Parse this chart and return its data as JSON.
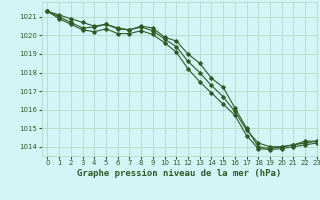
{
  "title": "Graphe pression niveau de la mer (hPa)",
  "bg_color": "#d4f5f5",
  "grid_color": "#b8ddd0",
  "line_color": "#2d5a27",
  "xlim": [
    -0.5,
    23
  ],
  "ylim": [
    1013.5,
    1021.8
  ],
  "xticks": [
    0,
    1,
    2,
    3,
    4,
    5,
    6,
    7,
    8,
    9,
    10,
    11,
    12,
    13,
    14,
    15,
    16,
    17,
    18,
    19,
    20,
    21,
    22,
    23
  ],
  "yticks": [
    1014,
    1015,
    1016,
    1017,
    1018,
    1019,
    1020,
    1021
  ],
  "series": [
    {
      "x": [
        0,
        1,
        2,
        3,
        4,
        5,
        6,
        7,
        8,
        9,
        10,
        11,
        12,
        13,
        14,
        15,
        16,
        17,
        18,
        19,
        20,
        21,
        22,
        23
      ],
      "y": [
        1021.3,
        1021.1,
        1020.9,
        1020.7,
        1020.5,
        1020.6,
        1020.4,
        1020.3,
        1020.5,
        1020.4,
        1019.9,
        1019.7,
        1019.0,
        1018.5,
        1017.7,
        1017.2,
        1016.1,
        1015.0,
        1014.0,
        1013.9,
        1014.0,
        1014.1,
        1014.3,
        1014.3
      ]
    },
    {
      "x": [
        0,
        1,
        2,
        3,
        4,
        5,
        6,
        7,
        8,
        9,
        10,
        11,
        12,
        13,
        14,
        15,
        16,
        17,
        18,
        19,
        20,
        21,
        22,
        23
      ],
      "y": [
        1021.3,
        1021.0,
        1020.7,
        1020.4,
        1020.45,
        1020.6,
        1020.35,
        1020.3,
        1020.45,
        1020.25,
        1019.8,
        1019.4,
        1018.6,
        1018.0,
        1017.3,
        1016.7,
        1015.9,
        1014.9,
        1014.2,
        1014.0,
        1014.0,
        1014.1,
        1014.2,
        1014.3
      ]
    },
    {
      "x": [
        0,
        1,
        2,
        3,
        4,
        5,
        6,
        7,
        8,
        9,
        10,
        11,
        12,
        13,
        14,
        15,
        16,
        17,
        18,
        19,
        20,
        21,
        22,
        23
      ],
      "y": [
        1021.3,
        1020.9,
        1020.6,
        1020.3,
        1020.2,
        1020.35,
        1020.1,
        1020.1,
        1020.25,
        1020.05,
        1019.6,
        1019.1,
        1018.2,
        1017.5,
        1016.9,
        1016.3,
        1015.7,
        1014.6,
        1013.9,
        1013.85,
        1013.9,
        1014.0,
        1014.1,
        1014.2
      ]
    }
  ]
}
